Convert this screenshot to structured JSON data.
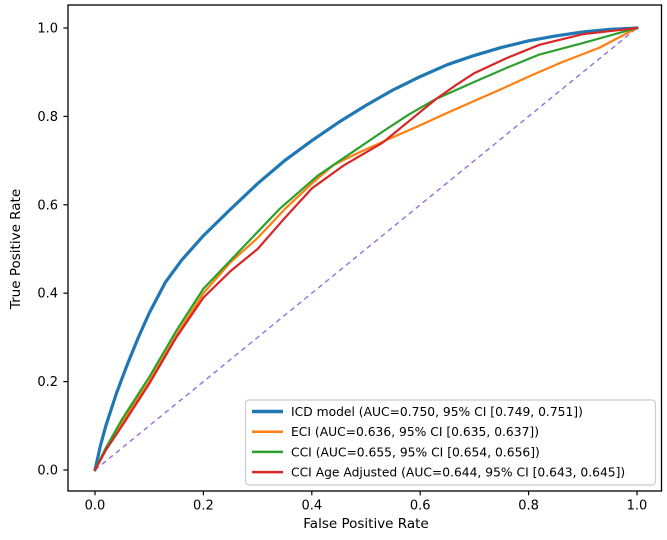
{
  "figure": {
    "xlabel": "False Positive Rate",
    "ylabel": "True Positive Rate"
  },
  "chart_data": {
    "type": "line",
    "subtype": "roc-curves",
    "title": "",
    "xlabel": "False Positive Rate",
    "ylabel": "True Positive Rate",
    "xlim": [
      -0.05,
      1.05
    ],
    "ylim": [
      -0.05,
      1.05
    ],
    "grid": false,
    "legend_position": "lower right",
    "x_ticks": {
      "values": [
        0.0,
        0.2,
        0.4,
        0.6,
        0.8,
        1.0
      ],
      "labels": [
        "0.0",
        "0.2",
        "0.4",
        "0.6",
        "0.8",
        "1.0"
      ]
    },
    "y_ticks": {
      "values": [
        0.0,
        0.2,
        0.4,
        0.6,
        0.8,
        1.0
      ],
      "labels": [
        "0.0",
        "0.2",
        "0.4",
        "0.6",
        "0.8",
        "1.0"
      ]
    },
    "series": [
      {
        "name": "ICD model",
        "legend_label": "ICD model (AUC=0.750, 95% CI [0.749, 0.751])",
        "auc": 0.75,
        "ci_95": [
          0.749,
          0.751
        ],
        "color": "#1f77b4",
        "line_width": 3.2,
        "style": "solid",
        "points": [
          [
            0,
            0
          ],
          [
            0.01,
            0.055
          ],
          [
            0.02,
            0.1
          ],
          [
            0.04,
            0.175
          ],
          [
            0.06,
            0.24
          ],
          [
            0.08,
            0.3
          ],
          [
            0.1,
            0.355
          ],
          [
            0.13,
            0.425
          ],
          [
            0.16,
            0.475
          ],
          [
            0.2,
            0.53
          ],
          [
            0.25,
            0.59
          ],
          [
            0.3,
            0.648
          ],
          [
            0.35,
            0.7
          ],
          [
            0.4,
            0.745
          ],
          [
            0.45,
            0.787
          ],
          [
            0.5,
            0.825
          ],
          [
            0.55,
            0.86
          ],
          [
            0.6,
            0.89
          ],
          [
            0.65,
            0.917
          ],
          [
            0.7,
            0.938
          ],
          [
            0.75,
            0.956
          ],
          [
            0.8,
            0.971
          ],
          [
            0.85,
            0.982
          ],
          [
            0.9,
            0.991
          ],
          [
            0.95,
            0.997
          ],
          [
            1,
            1
          ]
        ]
      },
      {
        "name": "ECI",
        "legend_label": "ECI (AUC=0.636, 95% CI [0.635, 0.637])",
        "auc": 0.636,
        "ci_95": [
          0.635,
          0.637
        ],
        "color": "#ff7f0e",
        "line_width": 2.2,
        "style": "solid",
        "points": [
          [
            0,
            0
          ],
          [
            0.02,
            0.045
          ],
          [
            0.05,
            0.108
          ],
          [
            0.1,
            0.2
          ],
          [
            0.15,
            0.305
          ],
          [
            0.2,
            0.4
          ],
          [
            0.25,
            0.47
          ],
          [
            0.3,
            0.525
          ],
          [
            0.35,
            0.59
          ],
          [
            0.4,
            0.648
          ],
          [
            0.44,
            0.69
          ],
          [
            0.49,
            0.72
          ],
          [
            0.55,
            0.753
          ],
          [
            0.6,
            0.78
          ],
          [
            0.65,
            0.808
          ],
          [
            0.7,
            0.835
          ],
          [
            0.75,
            0.862
          ],
          [
            0.8,
            0.89
          ],
          [
            0.86,
            0.922
          ],
          [
            0.93,
            0.955
          ],
          [
            1,
            1
          ]
        ]
      },
      {
        "name": "CCI",
        "legend_label": "CCI (AUC=0.655, 95% CI [0.654, 0.656])",
        "auc": 0.655,
        "ci_95": [
          0.654,
          0.656
        ],
        "color": "#2ca02c",
        "line_width": 2.2,
        "style": "solid",
        "points": [
          [
            0,
            0
          ],
          [
            0.02,
            0.05
          ],
          [
            0.05,
            0.115
          ],
          [
            0.1,
            0.21
          ],
          [
            0.15,
            0.315
          ],
          [
            0.2,
            0.41
          ],
          [
            0.27,
            0.5
          ],
          [
            0.34,
            0.59
          ],
          [
            0.41,
            0.665
          ],
          [
            0.47,
            0.715
          ],
          [
            0.53,
            0.765
          ],
          [
            0.58,
            0.805
          ],
          [
            0.63,
            0.84
          ],
          [
            0.7,
            0.878
          ],
          [
            0.76,
            0.91
          ],
          [
            0.82,
            0.94
          ],
          [
            0.9,
            0.966
          ],
          [
            1,
            1
          ]
        ]
      },
      {
        "name": "CCI Age Adjusted",
        "legend_label": "CCI Age Adjusted (AUC=0.644, 95% CI [0.643, 0.645])",
        "auc": 0.644,
        "ci_95": [
          0.643,
          0.645
        ],
        "color": "#d62728",
        "line_width": 2.2,
        "style": "solid",
        "points": [
          [
            0,
            0
          ],
          [
            0.02,
            0.045
          ],
          [
            0.05,
            0.1
          ],
          [
            0.1,
            0.195
          ],
          [
            0.15,
            0.3
          ],
          [
            0.2,
            0.39
          ],
          [
            0.25,
            0.45
          ],
          [
            0.3,
            0.5
          ],
          [
            0.35,
            0.57
          ],
          [
            0.4,
            0.637
          ],
          [
            0.46,
            0.69
          ],
          [
            0.53,
            0.74
          ],
          [
            0.58,
            0.79
          ],
          [
            0.63,
            0.84
          ],
          [
            0.665,
            0.87
          ],
          [
            0.7,
            0.898
          ],
          [
            0.76,
            0.932
          ],
          [
            0.82,
            0.962
          ],
          [
            0.9,
            0.986
          ],
          [
            1,
            1
          ]
        ]
      }
    ],
    "reference_line": {
      "name": "chance-diagonal",
      "color": "#9370db",
      "line_width": 1.4,
      "style": "dashed",
      "points": [
        [
          0,
          0
        ],
        [
          1,
          1
        ]
      ]
    }
  }
}
